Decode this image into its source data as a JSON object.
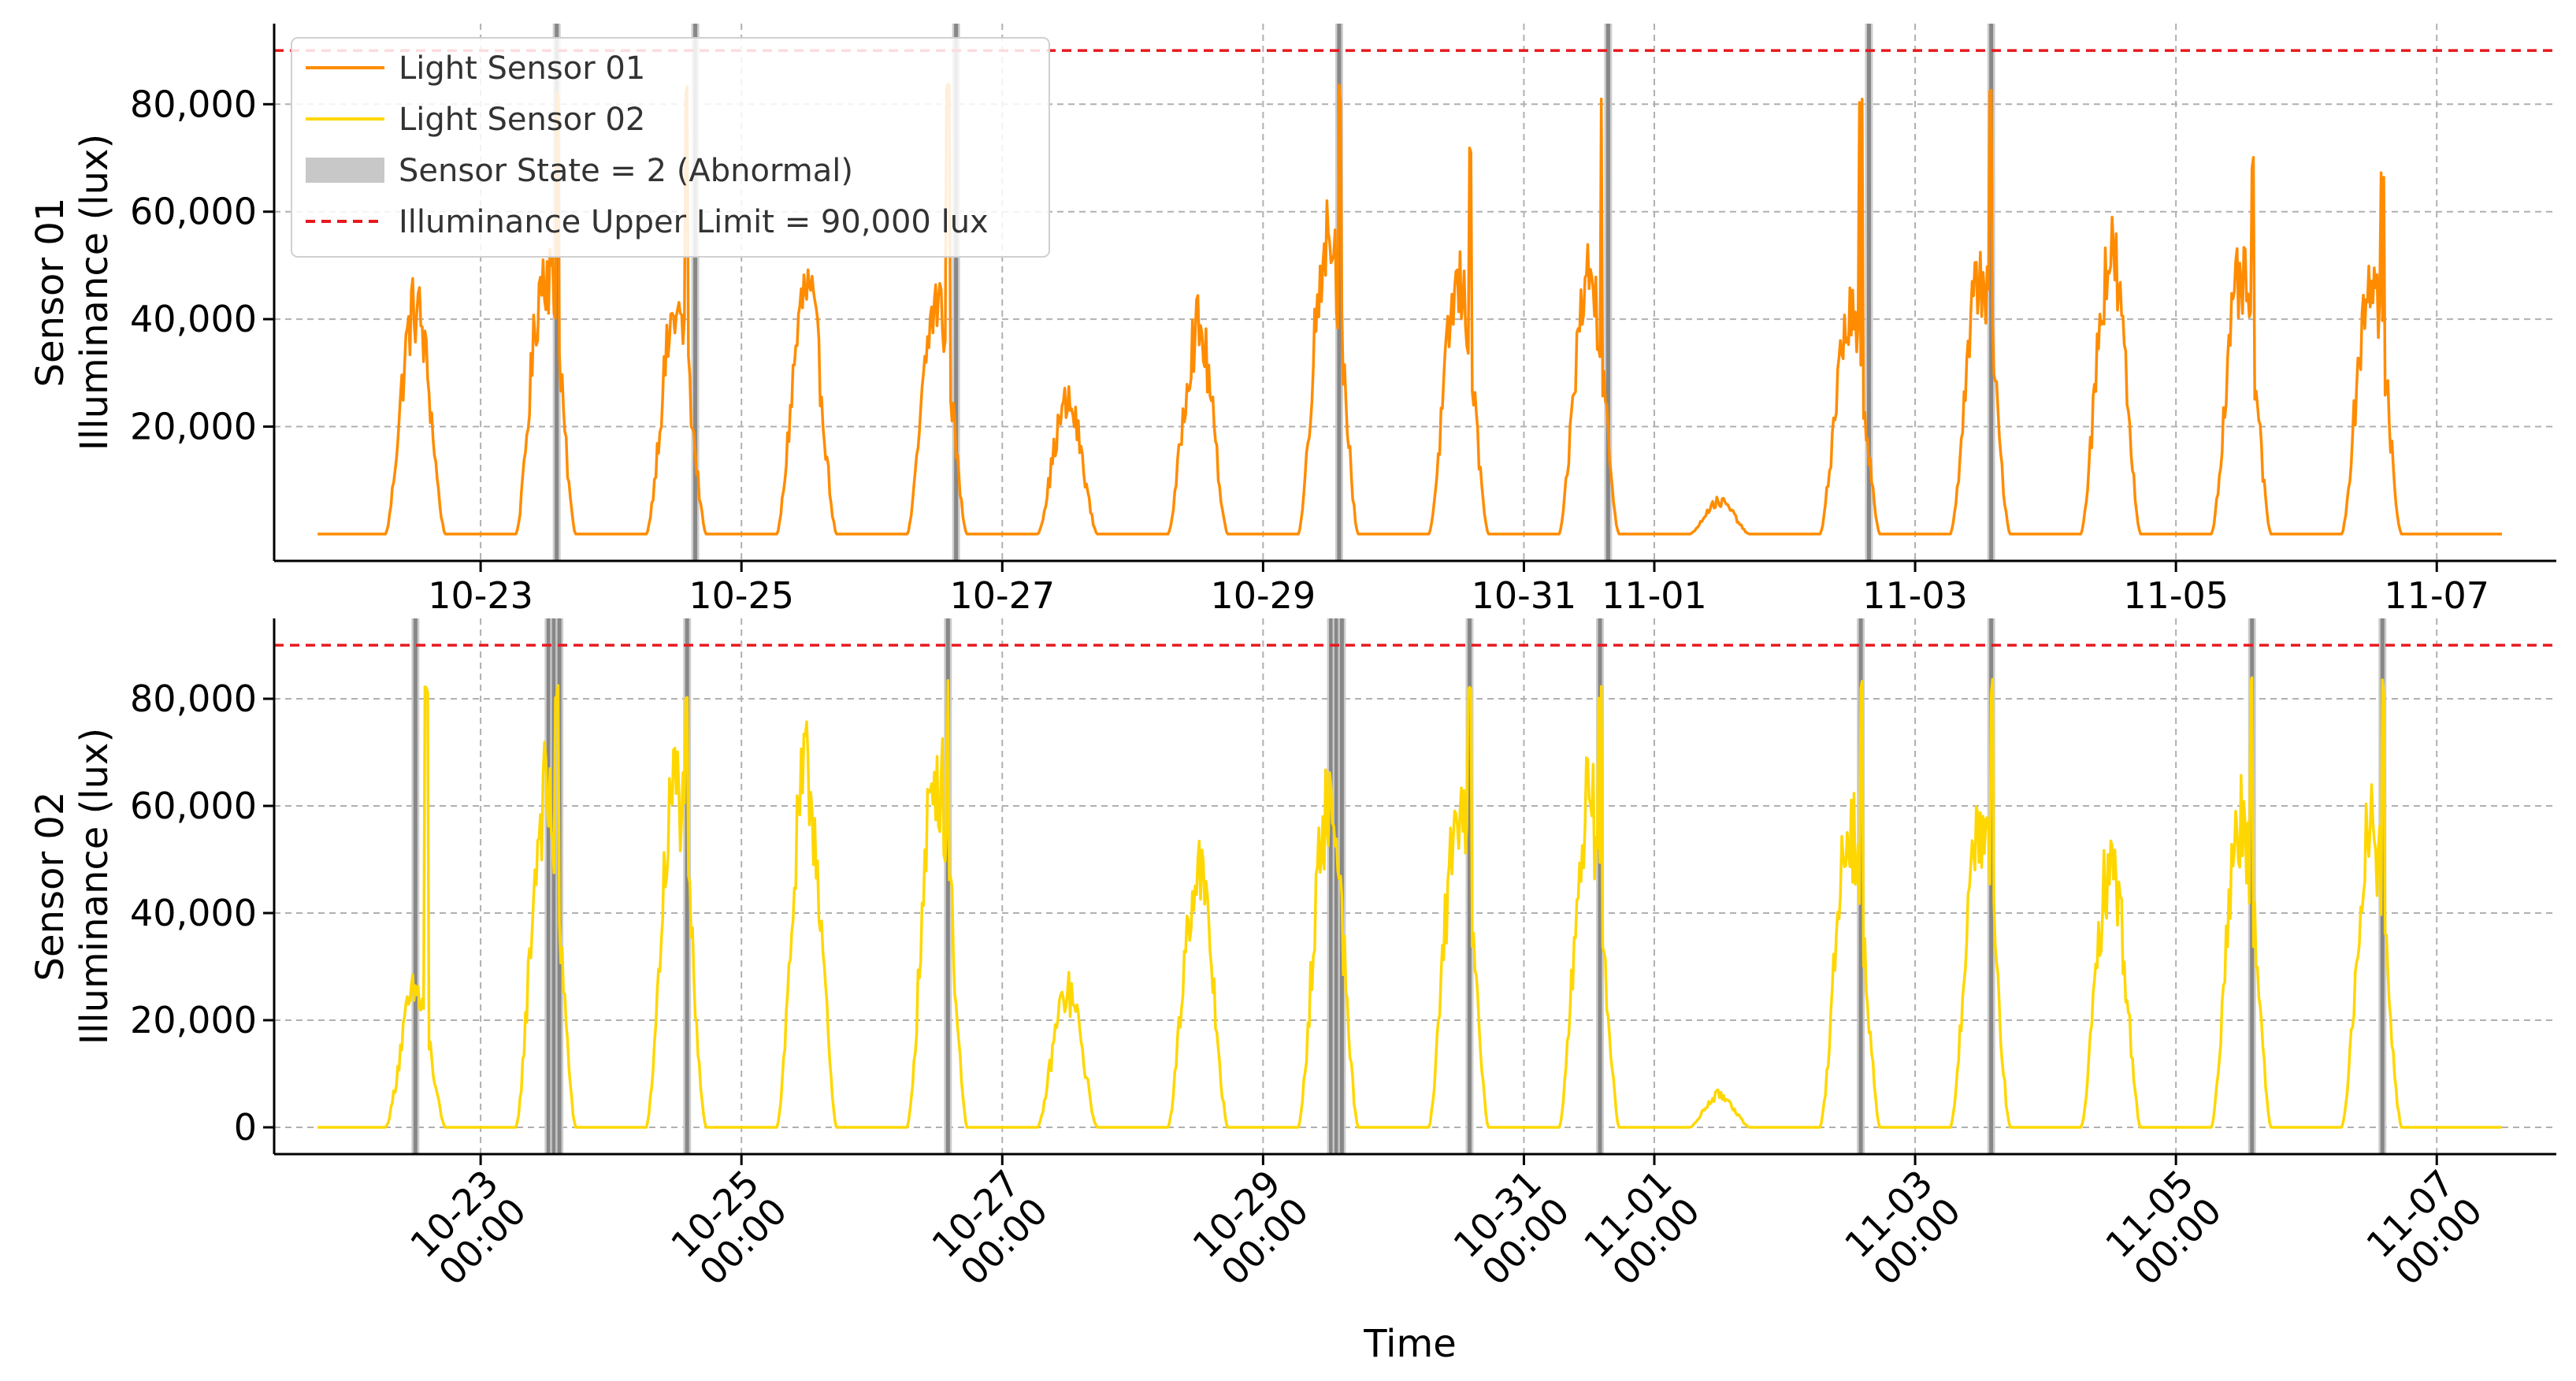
{
  "colors": {
    "sensor01": "#ff8c00",
    "sensor02": "#ffd700",
    "abnormal_band": "#808080",
    "abnormal_band_light": "#c8c8c8",
    "limit": "#e8191d",
    "grid": "#b0b0b0"
  },
  "chart_data": [
    {
      "type": "line",
      "panel": "top",
      "ylabel": [
        "Sensor 01",
        "Illuminance (lux)"
      ],
      "xlabel": "",
      "ylim": [
        -5000,
        95000
      ],
      "xlim": [
        "2024-10-21 10:00",
        "2024-11-07 22:00"
      ],
      "grid": true,
      "legend_position": "upper-left",
      "yticks": [
        {
          "value": 20000,
          "label": "20,000"
        },
        {
          "value": 40000,
          "label": "40,000"
        },
        {
          "value": 60000,
          "label": "60,000"
        },
        {
          "value": 80000,
          "label": "80,000"
        }
      ],
      "xticks": [
        {
          "date": "2024-10-23",
          "label": "10-23"
        },
        {
          "date": "2024-10-25",
          "label": "10-25"
        },
        {
          "date": "2024-10-27",
          "label": "10-27"
        },
        {
          "date": "2024-10-29",
          "label": "10-29"
        },
        {
          "date": "2024-10-31",
          "label": "10-31"
        },
        {
          "date": "2024-11-01",
          "label": "11-01"
        },
        {
          "date": "2024-11-03",
          "label": "11-03"
        },
        {
          "date": "2024-11-05",
          "label": "11-05"
        },
        {
          "date": "2024-11-07",
          "label": "11-07"
        }
      ],
      "limit_line": {
        "value": 90000,
        "label": "Illuminance Upper Limit = 90,000 lux"
      },
      "legend": [
        {
          "key": "s1",
          "label": "Light Sensor 01"
        },
        {
          "key": "s2",
          "label": "Light Sensor 02"
        },
        {
          "key": "band",
          "label": "Sensor State = 2 (Abnormal)"
        },
        {
          "key": "limit",
          "label": "Illuminance Upper Limit = 90,000 lux"
        }
      ],
      "abnormal_periods": [
        {
          "date": "2024-10-23",
          "hour": 14.0
        },
        {
          "date": "2024-10-24",
          "hour": 15.5
        },
        {
          "date": "2024-10-26",
          "hour": 15.5
        },
        {
          "date": "2024-10-29",
          "hour": 14.0
        },
        {
          "date": "2024-10-31",
          "hour": 15.5
        },
        {
          "date": "2024-11-02",
          "hour": 15.5
        },
        {
          "date": "2024-11-03",
          "hour": 14.0
        }
      ],
      "series": [
        {
          "name": "Light Sensor 01",
          "color_key": "sensor01",
          "daily_peaks": [
            {
              "date": "2024-10-22",
              "peak": 42000,
              "spike": null
            },
            {
              "date": "2024-10-23",
              "peak": 50000,
              "spike": 84000
            },
            {
              "date": "2024-10-24",
              "peak": 41000,
              "spike": 84000
            },
            {
              "date": "2024-10-25",
              "peak": 45000,
              "spike": null
            },
            {
              "date": "2024-10-26",
              "peak": 43000,
              "spike": 84000
            },
            {
              "date": "2024-10-27",
              "peak": 24000,
              "spike": null
            },
            {
              "date": "2024-10-28",
              "peak": 38000,
              "spike": null
            },
            {
              "date": "2024-10-29",
              "peak": 57000,
              "spike": 84000
            },
            {
              "date": "2024-10-30",
              "peak": 46000,
              "spike": 73000
            },
            {
              "date": "2024-10-31",
              "peak": 48000,
              "spike": 84000
            },
            {
              "date": "2024-11-01",
              "peak": 6000,
              "spike": null
            },
            {
              "date": "2024-11-02",
              "peak": 40000,
              "spike": 84000
            },
            {
              "date": "2024-11-03",
              "peak": 48000,
              "spike": 84000
            },
            {
              "date": "2024-11-04",
              "peak": 52000,
              "spike": null
            },
            {
              "date": "2024-11-05",
              "peak": 47000,
              "spike": 71000
            },
            {
              "date": "2024-11-06",
              "peak": 48000,
              "spike": 70000
            }
          ]
        }
      ]
    },
    {
      "type": "line",
      "panel": "bottom",
      "ylabel": [
        "Sensor 02",
        "Illuminance (lux)"
      ],
      "xlabel": "Time",
      "ylim": [
        -5000,
        95000
      ],
      "xlim": [
        "2024-10-21 10:00",
        "2024-11-07 22:00"
      ],
      "grid": true,
      "yticks": [
        {
          "value": 0,
          "label": "0"
        },
        {
          "value": 20000,
          "label": "20,000"
        },
        {
          "value": 40000,
          "label": "40,000"
        },
        {
          "value": 60000,
          "label": "60,000"
        },
        {
          "value": 80000,
          "label": "80,000"
        }
      ],
      "xticks": [
        {
          "date": "2024-10-23",
          "label": [
            "10-23",
            "00:00"
          ]
        },
        {
          "date": "2024-10-25",
          "label": [
            "10-25",
            "00:00"
          ]
        },
        {
          "date": "2024-10-27",
          "label": [
            "10-27",
            "00:00"
          ]
        },
        {
          "date": "2024-10-29",
          "label": [
            "10-29",
            "00:00"
          ]
        },
        {
          "date": "2024-10-31",
          "label": [
            "10-31",
            "00:00"
          ]
        },
        {
          "date": "2024-11-01",
          "label": [
            "11-01",
            "00:00"
          ]
        },
        {
          "date": "2024-11-03",
          "label": [
            "11-03",
            "00:00"
          ]
        },
        {
          "date": "2024-11-05",
          "label": [
            "11-05",
            "00:00"
          ]
        },
        {
          "date": "2024-11-07",
          "label": [
            "11-07",
            "00:00"
          ]
        }
      ],
      "limit_line": {
        "value": 90000
      },
      "abnormal_periods": [
        {
          "date": "2024-10-22",
          "hour": 12.0
        },
        {
          "date": "2024-10-23",
          "hour": 12.5
        },
        {
          "date": "2024-10-23",
          "hour": 13.5
        },
        {
          "date": "2024-10-23",
          "hour": 14.5
        },
        {
          "date": "2024-10-24",
          "hour": 14.0
        },
        {
          "date": "2024-10-26",
          "hour": 14.0
        },
        {
          "date": "2024-10-29",
          "hour": 12.5
        },
        {
          "date": "2024-10-29",
          "hour": 13.5
        },
        {
          "date": "2024-10-29",
          "hour": 14.5
        },
        {
          "date": "2024-10-30",
          "hour": 14.0
        },
        {
          "date": "2024-10-31",
          "hour": 14.0
        },
        {
          "date": "2024-11-02",
          "hour": 14.0
        },
        {
          "date": "2024-11-03",
          "hour": 14.0
        },
        {
          "date": "2024-11-05",
          "hour": 14.0
        },
        {
          "date": "2024-11-06",
          "hour": 14.0
        }
      ],
      "series": [
        {
          "name": "Light Sensor 02",
          "color_key": "sensor02",
          "daily_peaks": [
            {
              "date": "2024-10-22",
              "peak": 25000,
              "spike": 84000
            },
            {
              "date": "2024-10-23",
              "peak": 62000,
              "spike": 84000
            },
            {
              "date": "2024-10-24",
              "peak": 64000,
              "spike": 84000
            },
            {
              "date": "2024-10-25",
              "peak": 65000,
              "spike": null
            },
            {
              "date": "2024-10-26",
              "peak": 67000,
              "spike": 84000
            },
            {
              "date": "2024-10-27",
              "peak": 25000,
              "spike": null
            },
            {
              "date": "2024-10-28",
              "peak": 48000,
              "spike": null
            },
            {
              "date": "2024-10-29",
              "peak": 60000,
              "spike": 84000
            },
            {
              "date": "2024-10-30",
              "peak": 59000,
              "spike": 84000
            },
            {
              "date": "2024-10-31",
              "peak": 60000,
              "spike": 84000
            },
            {
              "date": "2024-11-01",
              "peak": 6000,
              "spike": null
            },
            {
              "date": "2024-11-02",
              "peak": 56000,
              "spike": 84000
            },
            {
              "date": "2024-11-03",
              "peak": 57000,
              "spike": 84000
            },
            {
              "date": "2024-11-04",
              "peak": 49000,
              "spike": null
            },
            {
              "date": "2024-11-05",
              "peak": 58000,
              "spike": 84000
            },
            {
              "date": "2024-11-06",
              "peak": 56000,
              "spike": 84000
            }
          ]
        }
      ]
    }
  ]
}
